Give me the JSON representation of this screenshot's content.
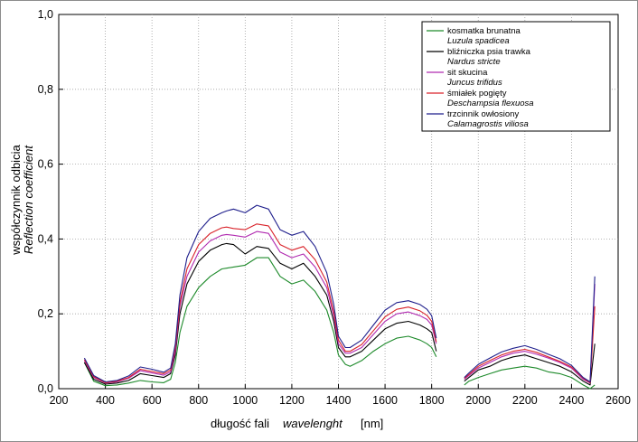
{
  "chart_data": {
    "type": "line",
    "xlabel": "długość fali",
    "xlabel_en": "wavelenght",
    "xlabel_unit": "[nm]",
    "ylabel": "współczynnik odbicia",
    "ylabel_en": "Reflection coefficient",
    "xlim": [
      200,
      2600
    ],
    "ylim": [
      0,
      1.0
    ],
    "x_ticks": [
      "200",
      "400",
      "600",
      "800",
      "1000",
      "1200",
      "1400",
      "1600",
      "1800",
      "2000",
      "2200",
      "2400",
      "2600"
    ],
    "y_ticks": [
      "0,0",
      "0,2",
      "0,4",
      "0,6",
      "0,8",
      "1,0"
    ],
    "grid": true,
    "legend_position": "top-right",
    "x": [
      310,
      350,
      400,
      450,
      500,
      550,
      600,
      650,
      680,
      700,
      720,
      750,
      800,
      850,
      900,
      920,
      950,
      1000,
      1050,
      1100,
      1150,
      1200,
      1250,
      1300,
      1350,
      1380,
      1400,
      1430,
      1450,
      1500,
      1550,
      1600,
      1650,
      1700,
      1750,
      1780,
      1800,
      1820,
      1940,
      1960,
      2000,
      2050,
      2100,
      2150,
      2200,
      2250,
      2300,
      2350,
      2400,
      2450,
      2480,
      2500
    ],
    "series": [
      {
        "name": "kosmatka brunatna",
        "name_latin": "Luzula spadicea",
        "color": "#1d8a2a",
        "values": [
          0.07,
          0.02,
          0.008,
          0.01,
          0.015,
          0.022,
          0.018,
          0.016,
          0.025,
          0.07,
          0.15,
          0.22,
          0.27,
          0.3,
          0.32,
          0.322,
          0.325,
          0.33,
          0.35,
          0.35,
          0.3,
          0.28,
          0.29,
          0.26,
          0.21,
          0.15,
          0.09,
          0.065,
          0.06,
          0.075,
          0.1,
          0.12,
          0.135,
          0.14,
          0.13,
          0.12,
          0.11,
          0.085,
          0.01,
          0.02,
          0.03,
          0.04,
          0.05,
          0.055,
          0.06,
          0.055,
          0.045,
          0.04,
          0.03,
          0.01,
          0.0,
          0.01
        ]
      },
      {
        "name": "bliźniczka psia trawka",
        "name_latin": "Nardus stricte",
        "color": "#000000",
        "values": [
          0.07,
          0.025,
          0.012,
          0.015,
          0.022,
          0.04,
          0.035,
          0.03,
          0.04,
          0.09,
          0.2,
          0.28,
          0.34,
          0.37,
          0.385,
          0.388,
          0.385,
          0.36,
          0.38,
          0.375,
          0.335,
          0.32,
          0.335,
          0.3,
          0.25,
          0.18,
          0.11,
          0.085,
          0.085,
          0.1,
          0.13,
          0.16,
          0.175,
          0.18,
          0.17,
          0.16,
          0.15,
          0.1,
          0.02,
          0.03,
          0.05,
          0.06,
          0.075,
          0.085,
          0.09,
          0.08,
          0.07,
          0.06,
          0.045,
          0.02,
          0.01,
          0.12
        ]
      },
      {
        "name": "sit skucina",
        "name_latin": "Juncus trifidus",
        "color": "#b02ab0",
        "values": [
          0.075,
          0.03,
          0.015,
          0.018,
          0.028,
          0.048,
          0.042,
          0.036,
          0.045,
          0.1,
          0.22,
          0.3,
          0.365,
          0.395,
          0.41,
          0.412,
          0.41,
          0.405,
          0.42,
          0.415,
          0.365,
          0.35,
          0.36,
          0.325,
          0.27,
          0.195,
          0.12,
          0.095,
          0.095,
          0.11,
          0.145,
          0.18,
          0.2,
          0.205,
          0.195,
          0.185,
          0.17,
          0.12,
          0.025,
          0.035,
          0.055,
          0.07,
          0.085,
          0.095,
          0.1,
          0.092,
          0.082,
          0.07,
          0.055,
          0.025,
          0.015,
          0.28
        ]
      },
      {
        "name": "śmiałek pogięty",
        "name_latin": "Deschampsia flexuosa",
        "color": "#d9232a",
        "values": [
          0.078,
          0.032,
          0.016,
          0.02,
          0.03,
          0.052,
          0.046,
          0.04,
          0.05,
          0.11,
          0.23,
          0.32,
          0.385,
          0.415,
          0.43,
          0.432,
          0.428,
          0.425,
          0.44,
          0.435,
          0.385,
          0.37,
          0.38,
          0.345,
          0.285,
          0.205,
          0.13,
          0.1,
          0.1,
          0.118,
          0.155,
          0.192,
          0.212,
          0.218,
          0.208,
          0.196,
          0.18,
          0.125,
          0.028,
          0.038,
          0.06,
          0.075,
          0.09,
          0.1,
          0.105,
          0.097,
          0.085,
          0.073,
          0.058,
          0.028,
          0.016,
          0.22
        ]
      },
      {
        "name": "trzcinnik owłosiony",
        "name_latin": "Calamagrostis viliosa",
        "color": "#1f1f8c",
        "values": [
          0.082,
          0.035,
          0.018,
          0.022,
          0.034,
          0.058,
          0.052,
          0.044,
          0.055,
          0.12,
          0.25,
          0.35,
          0.42,
          0.455,
          0.47,
          0.475,
          0.48,
          0.47,
          0.49,
          0.48,
          0.425,
          0.41,
          0.42,
          0.38,
          0.31,
          0.225,
          0.14,
          0.11,
          0.11,
          0.13,
          0.17,
          0.21,
          0.23,
          0.235,
          0.225,
          0.212,
          0.195,
          0.135,
          0.03,
          0.042,
          0.065,
          0.082,
          0.098,
          0.108,
          0.115,
          0.105,
          0.092,
          0.08,
          0.062,
          0.03,
          0.018,
          0.3
        ]
      }
    ]
  }
}
